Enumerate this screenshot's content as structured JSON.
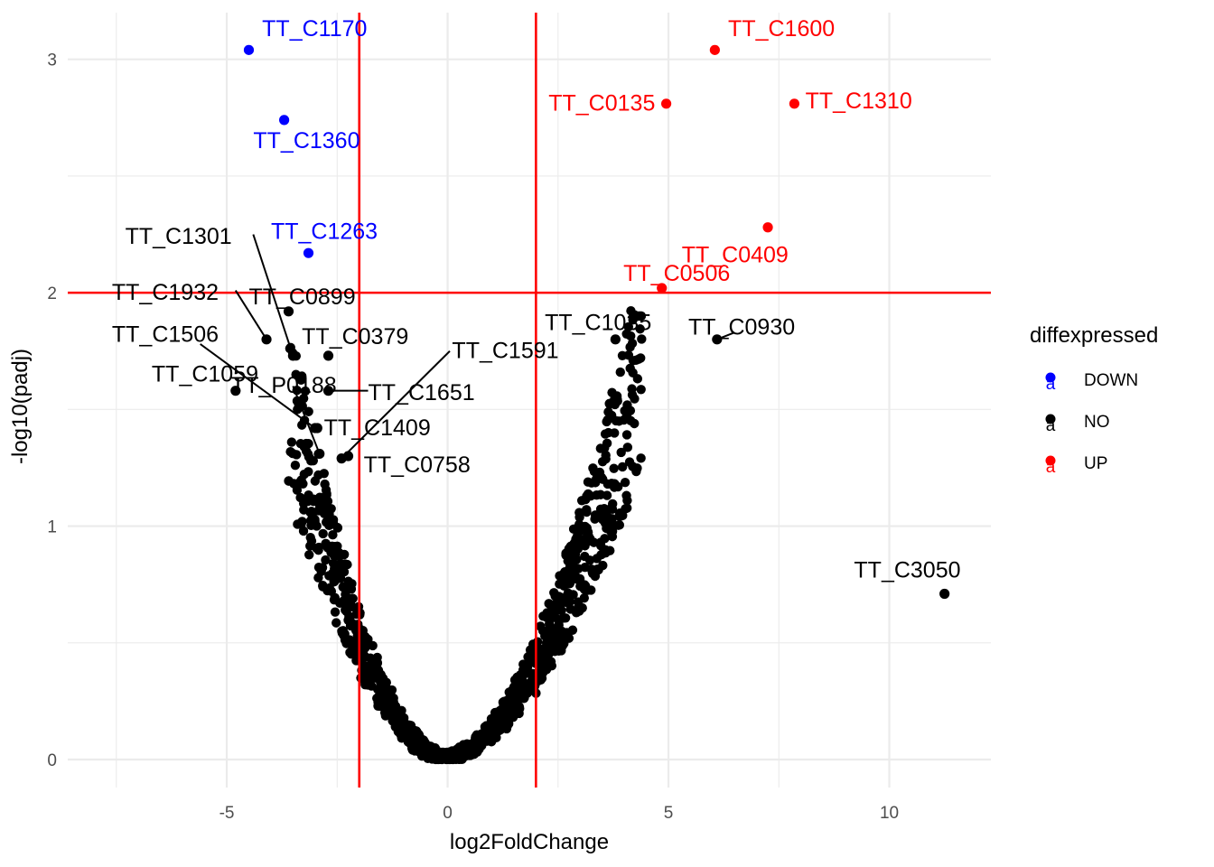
{
  "chart_data": {
    "type": "scatter",
    "title": "",
    "xlabel": "log2FoldChange",
    "ylabel": "-log10(padj)",
    "xlim": [
      -8.6,
      12.3
    ],
    "ylim": [
      -0.12,
      3.2
    ],
    "x_ticks": [
      -5,
      0,
      5,
      10
    ],
    "x_tick_labels": [
      "-5",
      "0",
      "5",
      "10"
    ],
    "y_ticks": [
      0,
      1,
      2,
      3
    ],
    "y_tick_labels": [
      "0",
      "1",
      "2",
      "3"
    ],
    "grid": true,
    "thresholds": {
      "x": [
        -2,
        2
      ],
      "y": 2,
      "color": "#ff0000"
    },
    "legend": {
      "title": "diffexpressed",
      "position": "right",
      "entries": [
        {
          "label": "DOWN",
          "color": "#0000ff"
        },
        {
          "label": "NO",
          "color": "#000000"
        },
        {
          "label": "UP",
          "color": "#ff0000"
        }
      ]
    },
    "colors": {
      "DOWN": "#0000ff",
      "NO": "#000000",
      "UP": "#ff0000"
    },
    "labeled_points": [
      {
        "gene": "TT_C1170",
        "x": -4.5,
        "y": 3.04,
        "group": "DOWN",
        "lx": -4.2,
        "ly": 3.1,
        "anchor": "start"
      },
      {
        "gene": "TT_C1360",
        "x": -3.7,
        "y": 2.74,
        "group": "DOWN",
        "lx": -4.4,
        "ly": 2.62,
        "anchor": "start"
      },
      {
        "gene": "TT_C1263",
        "x": -3.15,
        "y": 2.17,
        "group": "DOWN",
        "lx": -4.0,
        "ly": 2.23,
        "anchor": "start"
      },
      {
        "gene": "TT_C1600",
        "x": 6.05,
        "y": 3.04,
        "group": "UP",
        "lx": 6.35,
        "ly": 3.1,
        "anchor": "start"
      },
      {
        "gene": "TT_C0135",
        "x": 4.95,
        "y": 2.81,
        "group": "UP",
        "lx": 4.7,
        "ly": 2.78,
        "anchor": "end"
      },
      {
        "gene": "TT_C1310",
        "x": 7.85,
        "y": 2.81,
        "group": "UP",
        "lx": 8.1,
        "ly": 2.79,
        "anchor": "start"
      },
      {
        "gene": "TT_C0409",
        "x": 7.25,
        "y": 2.28,
        "group": "UP",
        "lx": 5.3,
        "ly": 2.13,
        "anchor": "start"
      },
      {
        "gene": "TT_C0506",
        "x": 4.85,
        "y": 2.02,
        "group": "UP",
        "lx": 3.98,
        "ly": 2.05,
        "anchor": "start"
      },
      {
        "gene": "TT_C1301",
        "x": -3.5,
        "y": 1.73,
        "group": "NO",
        "lx": -7.3,
        "ly": 2.21,
        "anchor": "start",
        "sx": -4.4,
        "sy": 2.25
      },
      {
        "gene": "TT_C1932",
        "x": -4.1,
        "y": 1.8,
        "group": "NO",
        "lx": -7.6,
        "ly": 1.97,
        "anchor": "start",
        "sx": -4.8,
        "sy": 2.01
      },
      {
        "gene": "TT_C0899",
        "x": -3.6,
        "y": 1.92,
        "group": "NO",
        "lx": -4.5,
        "ly": 1.95,
        "anchor": "start"
      },
      {
        "gene": "TT_C0379",
        "x": -2.7,
        "y": 1.73,
        "group": "NO",
        "lx": -3.3,
        "ly": 1.78,
        "anchor": "start"
      },
      {
        "gene": "TT_C1506",
        "x": -3.0,
        "y": 1.42,
        "group": "NO",
        "lx": -7.6,
        "ly": 1.79,
        "anchor": "start",
        "sx": -5.6,
        "sy": 1.78
      },
      {
        "gene": "TT_C1059",
        "x": -4.8,
        "y": 1.58,
        "group": "NO",
        "lx": -6.7,
        "ly": 1.62,
        "anchor": "start"
      },
      {
        "gene": "TT_P0188",
        "x": -2.9,
        "y": 1.31,
        "group": "NO",
        "lx": -4.9,
        "ly": 1.57,
        "anchor": "start",
        "sx": -3.5,
        "sy": 1.6
      },
      {
        "gene": "TT_C1591",
        "x": -2.4,
        "y": 1.29,
        "group": "NO",
        "lx": 0.1,
        "ly": 1.72,
        "anchor": "start",
        "sx": 0.05,
        "sy": 1.75
      },
      {
        "gene": "TT_C1651",
        "x": -2.7,
        "y": 1.58,
        "group": "NO",
        "lx": -1.8,
        "ly": 1.54,
        "anchor": "start",
        "sx": -1.8,
        "sy": 1.58
      },
      {
        "gene": "TT_C1409",
        "x": -2.95,
        "y": 1.42,
        "group": "NO",
        "lx": -2.8,
        "ly": 1.39,
        "anchor": "start"
      },
      {
        "gene": "TT_C0758",
        "x": -2.25,
        "y": 1.3,
        "group": "NO",
        "lx": -1.9,
        "ly": 1.23,
        "anchor": "start"
      },
      {
        "gene": "TT_C1035",
        "x": 3.8,
        "y": 1.8,
        "group": "NO",
        "lx": 2.2,
        "ly": 1.84,
        "anchor": "start"
      },
      {
        "gene": "TT_C0930",
        "x": 6.1,
        "y": 1.8,
        "group": "NO",
        "lx": 5.45,
        "ly": 1.82,
        "anchor": "start",
        "sx": 6.5,
        "sy": 1.83
      },
      {
        "gene": "TT_C3050",
        "x": 11.25,
        "y": 0.71,
        "group": "NO",
        "lx": 9.2,
        "ly": 0.78,
        "anchor": "start"
      }
    ]
  }
}
